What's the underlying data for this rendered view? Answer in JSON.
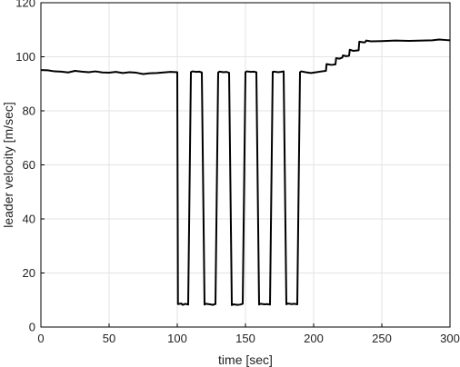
{
  "chart_data": {
    "type": "line",
    "title": "",
    "xlabel": "time [sec]",
    "ylabel": "leader velocity [m/sec]",
    "xlim": [
      0,
      300
    ],
    "ylim": [
      0,
      120
    ],
    "x_ticks": [
      "0",
      "50",
      "100",
      "150",
      "200",
      "250",
      "300"
    ],
    "y_ticks": [
      "0",
      "20",
      "40",
      "60",
      "80",
      "100",
      "120"
    ],
    "grid": true,
    "line_color": "#000000",
    "series": [
      {
        "x": [
          0,
          5,
          10,
          15,
          20,
          25,
          30,
          35,
          40,
          45,
          50,
          55,
          60,
          65,
          70,
          75,
          80,
          85,
          90,
          95,
          100,
          100.5,
          103,
          104,
          106,
          108,
          110,
          111,
          114,
          116,
          118,
          120,
          121,
          124,
          126,
          128,
          130,
          131,
          134,
          136,
          138,
          140,
          141,
          144,
          146,
          148,
          150,
          151,
          154,
          156,
          158,
          160,
          161,
          164,
          166,
          168,
          170,
          171,
          174,
          176,
          178,
          180,
          181,
          184,
          186,
          188,
          190,
          191,
          194,
          198,
          202,
          206,
          209,
          209.5,
          213,
          216,
          216.5,
          219,
          221,
          221.5,
          224,
          226,
          226.5,
          229,
          233,
          233.5,
          237,
          238,
          238.5,
          242,
          250,
          260,
          270,
          280,
          287,
          292,
          297,
          300
        ],
        "y": [
          95.1,
          95.0,
          94.6,
          94.5,
          94.2,
          94.8,
          94.5,
          94.3,
          94.6,
          94.2,
          94.1,
          94.4,
          94.0,
          94.3,
          94.1,
          93.6,
          93.9,
          94.0,
          94.2,
          94.4,
          94.3,
          8.5,
          8.7,
          8.2,
          8.6,
          8.3,
          94.3,
          94.6,
          94.4,
          94.5,
          94.2,
          8.3,
          8.6,
          8.4,
          8.2,
          8.5,
          94.2,
          94.5,
          94.3,
          94.4,
          94.1,
          8.1,
          8.4,
          8.2,
          8.3,
          8.6,
          94.3,
          94.6,
          94.4,
          94.5,
          94.3,
          8.3,
          8.6,
          8.4,
          8.5,
          8.3,
          94.4,
          94.5,
          94.3,
          94.4,
          94.6,
          8.4,
          8.7,
          8.5,
          8.6,
          8.4,
          94.3,
          94.6,
          94.3,
          94.0,
          94.3,
          94.6,
          94.8,
          97.3,
          97.0,
          97.2,
          99.5,
          99.3,
          99.7,
          100.5,
          100.2,
          100.4,
          102.6,
          102.2,
          102.4,
          105.6,
          105.3,
          105.5,
          106.0,
          105.7,
          105.8,
          106.0,
          105.9,
          106.0,
          106.1,
          106.4,
          106.2,
          106.1
        ]
      }
    ]
  }
}
